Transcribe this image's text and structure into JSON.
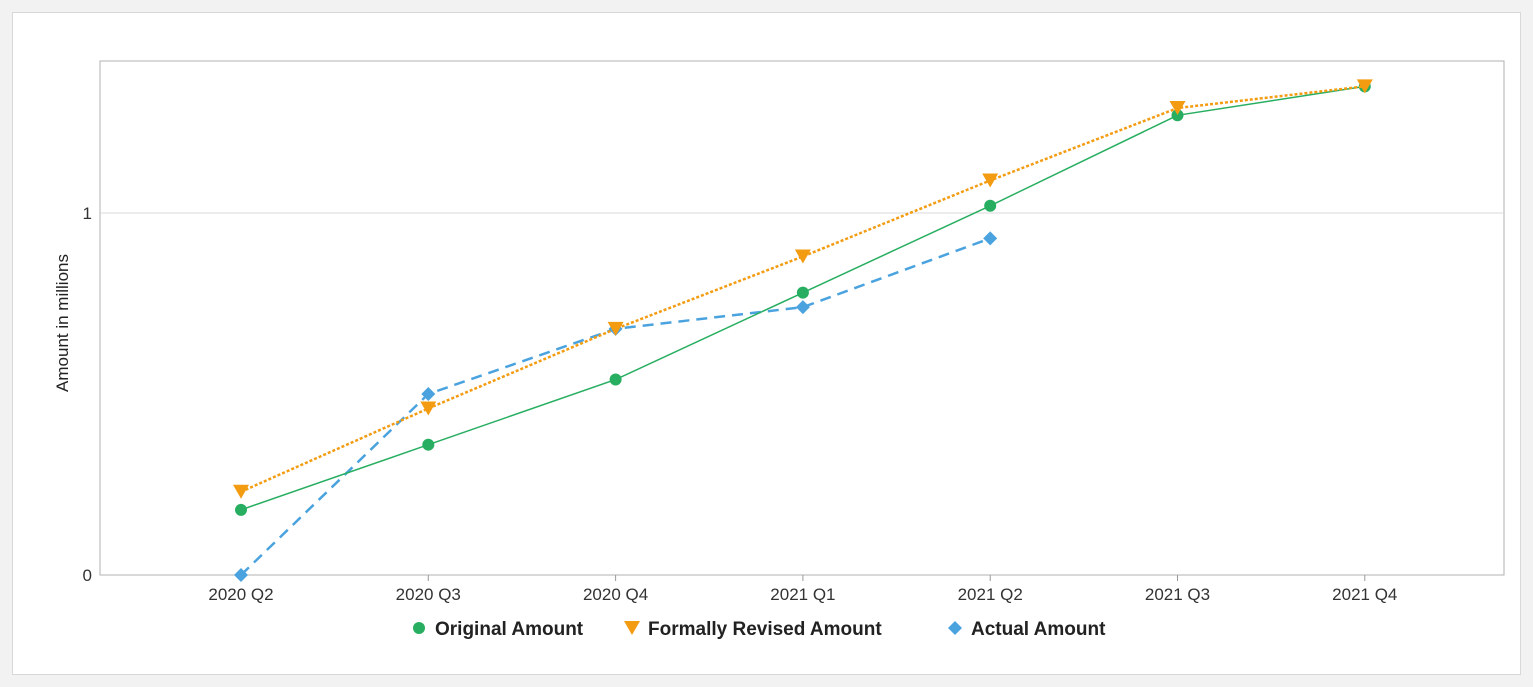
{
  "chart_data": {
    "type": "line",
    "categories": [
      "2020 Q2",
      "2020 Q3",
      "2020 Q4",
      "2021 Q1",
      "2021 Q2",
      "2021 Q3",
      "2021 Q4"
    ],
    "ylabel": "Amount in millions",
    "ylim": [
      0,
      1.42
    ],
    "y_ticks": [
      {
        "value": 0,
        "label": "0"
      },
      {
        "value": 1,
        "label": "1"
      }
    ],
    "grid": true,
    "legend_position": "bottom",
    "series": [
      {
        "name": "Original Amount",
        "color": "#27ae60",
        "marker": "circle",
        "line_style": "solid",
        "values": [
          0.18,
          0.36,
          0.54,
          0.78,
          1.02,
          1.27,
          1.35
        ]
      },
      {
        "name": "Formally Revised Amount",
        "color": "#f39c12",
        "marker": "triangle-down",
        "line_style": "dotted",
        "values": [
          0.23,
          0.46,
          0.68,
          0.88,
          1.09,
          1.29,
          1.35
        ]
      },
      {
        "name": "Actual Amount",
        "color": "#4aa3df",
        "marker": "diamond",
        "line_style": "dashed",
        "values": [
          0.0,
          0.5,
          0.68,
          0.74,
          0.93,
          null,
          null
        ]
      }
    ]
  }
}
